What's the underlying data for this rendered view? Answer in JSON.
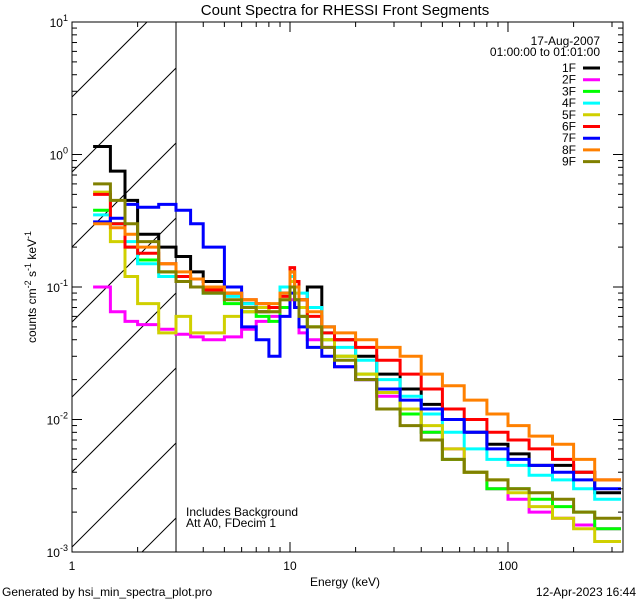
{
  "chart_data": {
    "type": "line",
    "step": true,
    "title": "Count Spectra for RHESSI Front Segments",
    "xlabel": "Energy (keV)",
    "ylabel": "counts cm-2 s-1 keV-1",
    "ylabel_parts": {
      "base": "counts cm",
      "e1": "-2",
      "mid1": " s",
      "e2": "-1",
      "mid2": " keV",
      "e3": "-1"
    },
    "xscale": "log",
    "yscale": "log",
    "xlim": [
      1,
      337
    ],
    "ylim": [
      0.001,
      10
    ],
    "x_tick_labels": [
      "1",
      "10",
      "100"
    ],
    "y_tick_labels": [
      {
        "base": "10",
        "exp": "1"
      },
      {
        "base": "10",
        "exp": "0"
      },
      {
        "base": "10",
        "exp": "-1"
      },
      {
        "base": "10",
        "exp": "-2"
      },
      {
        "base": "10",
        "exp": "-3"
      }
    ],
    "date": "17-Aug-2007",
    "time_range": "01:00:00 to 01:01:00",
    "excluded_region_keV": [
      1,
      3
    ],
    "annotations": [
      "Includes Background",
      "Att A0, FDecim 1"
    ],
    "legend_position": "top-right",
    "energy_edges": [
      1.25,
      1.5,
      1.75,
      2,
      2.5,
      3,
      3.5,
      4,
      5,
      6,
      7,
      8,
      9,
      10,
      10.5,
      11,
      12,
      14,
      16,
      20,
      25,
      32,
      40,
      50,
      63,
      80,
      100,
      125,
      160,
      200,
      250,
      330
    ],
    "series": [
      {
        "name": "1F",
        "color": "#000000",
        "values": [
          1.15,
          0.75,
          0.45,
          0.25,
          0.2,
          0.17,
          0.13,
          0.11,
          0.09,
          0.075,
          0.065,
          0.07,
          0.09,
          0.13,
          0.1,
          0.08,
          0.1,
          0.05,
          0.04,
          0.03,
          0.022,
          0.017,
          0.013,
          0.01,
          0.008,
          0.0065,
          0.0055,
          0.0045,
          0.0045,
          0.004,
          0.0028
        ]
      },
      {
        "name": "2F",
        "color": "#ff00ff",
        "values": [
          0.1,
          0.065,
          0.055,
          0.052,
          0.048,
          0.044,
          0.042,
          0.04,
          0.042,
          0.048,
          0.055,
          0.06,
          0.07,
          0.08,
          0.07,
          0.045,
          0.04,
          0.035,
          0.025,
          0.02,
          0.015,
          0.012,
          0.008,
          0.006,
          0.004,
          0.003,
          0.0025,
          0.002,
          0.0018,
          0.0016,
          0.0015
        ]
      },
      {
        "name": "3F",
        "color": "#00ff00",
        "values": [
          0.38,
          0.3,
          0.2,
          0.16,
          0.13,
          0.12,
          0.1,
          0.09,
          0.075,
          0.065,
          0.06,
          0.055,
          0.07,
          0.1,
          0.08,
          0.06,
          0.05,
          0.04,
          0.03,
          0.022,
          0.016,
          0.011,
          0.008,
          0.005,
          0.004,
          0.003,
          0.003,
          0.0025,
          0.0022,
          0.002,
          0.0015
        ]
      },
      {
        "name": "4F",
        "color": "#00ffff",
        "values": [
          0.35,
          0.3,
          0.22,
          0.15,
          0.12,
          0.11,
          0.1,
          0.09,
          0.085,
          0.075,
          0.07,
          0.07,
          0.1,
          0.12,
          0.1,
          0.09,
          0.07,
          0.045,
          0.035,
          0.028,
          0.02,
          0.015,
          0.011,
          0.008,
          0.006,
          0.005,
          0.0045,
          0.0038,
          0.0035,
          0.003,
          0.0025
        ]
      },
      {
        "name": "5F",
        "color": "#d0d000",
        "values": [
          0.52,
          0.22,
          0.12,
          0.075,
          0.045,
          0.06,
          0.045,
          0.045,
          0.06,
          0.065,
          0.07,
          0.065,
          0.08,
          0.11,
          0.09,
          0.07,
          0.05,
          0.04,
          0.03,
          0.022,
          0.016,
          0.012,
          0.009,
          0.006,
          0.004,
          0.0035,
          0.0028,
          0.0022,
          0.0018,
          0.0015,
          0.0012
        ]
      },
      {
        "name": "6F",
        "color": "#ff0000",
        "values": [
          0.5,
          0.3,
          0.2,
          0.18,
          0.15,
          0.12,
          0.1,
          0.095,
          0.09,
          0.08,
          0.075,
          0.07,
          0.085,
          0.14,
          0.11,
          0.08,
          0.06,
          0.045,
          0.04,
          0.035,
          0.028,
          0.022,
          0.017,
          0.012,
          0.01,
          0.008,
          0.007,
          0.006,
          0.005,
          0.004,
          0.0035
        ]
      },
      {
        "name": "7F",
        "color": "#0000ff",
        "values": [
          0.31,
          0.33,
          0.42,
          0.4,
          0.42,
          0.38,
          0.3,
          0.2,
          0.1,
          0.05,
          0.04,
          0.03,
          0.06,
          0.09,
          0.07,
          0.05,
          0.035,
          0.03,
          0.025,
          0.02,
          0.017,
          0.014,
          0.012,
          0.01,
          0.008,
          0.006,
          0.005,
          0.0045,
          0.004,
          0.0035,
          0.003
        ]
      },
      {
        "name": "8F",
        "color": "#ff8000",
        "values": [
          0.3,
          0.28,
          0.25,
          0.2,
          0.15,
          0.13,
          0.115,
          0.1,
          0.09,
          0.08,
          0.075,
          0.075,
          0.09,
          0.13,
          0.1,
          0.08,
          0.065,
          0.05,
          0.045,
          0.04,
          0.035,
          0.03,
          0.022,
          0.018,
          0.014,
          0.011,
          0.009,
          0.0075,
          0.0065,
          0.005,
          0.0035
        ]
      },
      {
        "name": "9F",
        "color": "#808000",
        "values": [
          0.6,
          0.45,
          0.3,
          0.22,
          0.13,
          0.11,
          0.1,
          0.09,
          0.08,
          0.07,
          0.065,
          0.065,
          0.08,
          0.1,
          0.08,
          0.06,
          0.05,
          0.035,
          0.028,
          0.02,
          0.012,
          0.009,
          0.007,
          0.005,
          0.004,
          0.0035,
          0.003,
          0.0028,
          0.0025,
          0.002,
          0.0018
        ]
      }
    ]
  },
  "footer": {
    "generated_by": "Generated by hsi_min_spectra_plot.pro",
    "timestamp": "12-Apr-2023 16:44"
  }
}
